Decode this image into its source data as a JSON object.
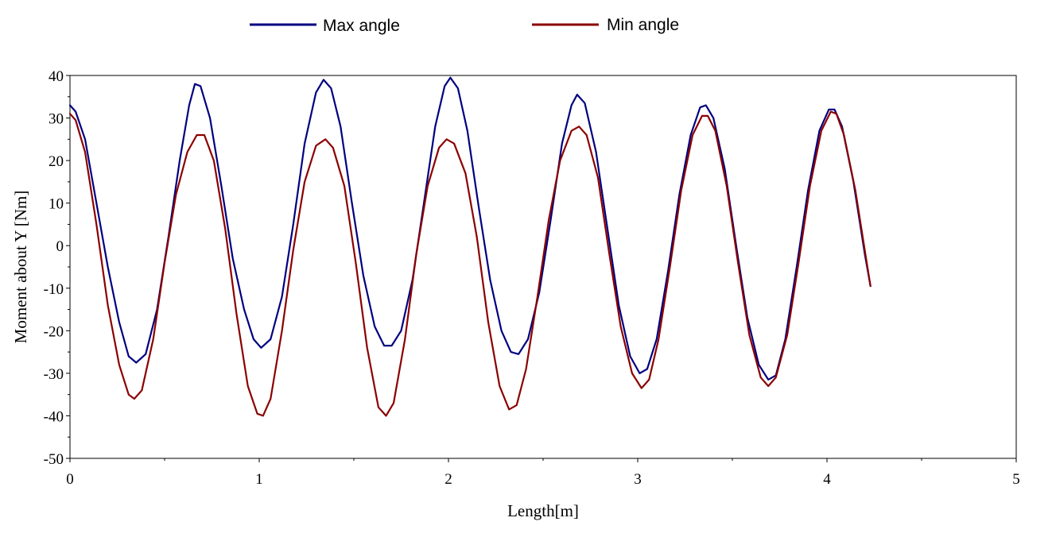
{
  "chart_data": {
    "type": "line",
    "title": "",
    "xlabel": "Length[m]",
    "ylabel": "Moment about Y [Nm]",
    "xlim": [
      0,
      5
    ],
    "ylim": [
      -50,
      40
    ],
    "xticks": [
      0,
      1,
      2,
      3,
      4,
      5
    ],
    "yticks": [
      40,
      30,
      20,
      10,
      0,
      -10,
      -20,
      -30,
      -40,
      -50
    ],
    "grid": false,
    "legend_position": "top",
    "series": [
      {
        "name": "Max angle",
        "color": "#000080",
        "points": [
          [
            0.0,
            33.0
          ],
          [
            0.03,
            31.5
          ],
          [
            0.08,
            25.0
          ],
          [
            0.14,
            10.0
          ],
          [
            0.2,
            -5.0
          ],
          [
            0.26,
            -18.0
          ],
          [
            0.31,
            -26.0
          ],
          [
            0.35,
            -27.5
          ],
          [
            0.4,
            -25.5
          ],
          [
            0.46,
            -15.0
          ],
          [
            0.52,
            2.0
          ],
          [
            0.58,
            20.0
          ],
          [
            0.63,
            33.0
          ],
          [
            0.66,
            38.0
          ],
          [
            0.69,
            37.5
          ],
          [
            0.74,
            30.0
          ],
          [
            0.8,
            14.0
          ],
          [
            0.86,
            -3.0
          ],
          [
            0.92,
            -15.0
          ],
          [
            0.97,
            -22.0
          ],
          [
            1.01,
            -24.0
          ],
          [
            1.06,
            -22.0
          ],
          [
            1.12,
            -12.0
          ],
          [
            1.18,
            5.0
          ],
          [
            1.24,
            24.0
          ],
          [
            1.3,
            36.0
          ],
          [
            1.34,
            39.0
          ],
          [
            1.38,
            37.0
          ],
          [
            1.43,
            28.0
          ],
          [
            1.49,
            10.0
          ],
          [
            1.55,
            -7.0
          ],
          [
            1.61,
            -19.0
          ],
          [
            1.66,
            -23.5
          ],
          [
            1.7,
            -23.5
          ],
          [
            1.75,
            -20.0
          ],
          [
            1.81,
            -8.0
          ],
          [
            1.87,
            10.0
          ],
          [
            1.93,
            28.0
          ],
          [
            1.98,
            37.5
          ],
          [
            2.01,
            39.5
          ],
          [
            2.05,
            37.0
          ],
          [
            2.1,
            27.0
          ],
          [
            2.16,
            9.0
          ],
          [
            2.22,
            -8.0
          ],
          [
            2.28,
            -20.0
          ],
          [
            2.33,
            -25.0
          ],
          [
            2.37,
            -25.5
          ],
          [
            2.42,
            -22.0
          ],
          [
            2.48,
            -11.0
          ],
          [
            2.54,
            6.0
          ],
          [
            2.6,
            24.0
          ],
          [
            2.65,
            33.0
          ],
          [
            2.68,
            35.5
          ],
          [
            2.72,
            33.5
          ],
          [
            2.78,
            22.0
          ],
          [
            2.84,
            4.0
          ],
          [
            2.9,
            -14.0
          ],
          [
            2.96,
            -26.0
          ],
          [
            3.01,
            -30.0
          ],
          [
            3.05,
            -29.0
          ],
          [
            3.1,
            -22.0
          ],
          [
            3.16,
            -6.0
          ],
          [
            3.22,
            12.0
          ],
          [
            3.28,
            26.0
          ],
          [
            3.33,
            32.5
          ],
          [
            3.36,
            33.0
          ],
          [
            3.4,
            30.0
          ],
          [
            3.46,
            18.0
          ],
          [
            3.52,
            0.0
          ],
          [
            3.58,
            -17.0
          ],
          [
            3.64,
            -28.0
          ],
          [
            3.69,
            -31.5
          ],
          [
            3.73,
            -30.5
          ],
          [
            3.78,
            -22.0
          ],
          [
            3.84,
            -5.0
          ],
          [
            3.9,
            13.0
          ],
          [
            3.96,
            27.0
          ],
          [
            4.01,
            32.0
          ],
          [
            4.04,
            32.0
          ],
          [
            4.08,
            28.0
          ],
          [
            4.14,
            15.0
          ],
          [
            4.2,
            -2.0
          ],
          [
            4.23,
            -9.5
          ]
        ]
      },
      {
        "name": "Min angle",
        "color": "#8B0000",
        "points": [
          [
            0.0,
            31.0
          ],
          [
            0.03,
            29.5
          ],
          [
            0.08,
            22.0
          ],
          [
            0.14,
            5.0
          ],
          [
            0.2,
            -14.0
          ],
          [
            0.26,
            -28.0
          ],
          [
            0.31,
            -35.0
          ],
          [
            0.34,
            -36.0
          ],
          [
            0.38,
            -34.0
          ],
          [
            0.44,
            -22.0
          ],
          [
            0.5,
            -4.0
          ],
          [
            0.56,
            12.0
          ],
          [
            0.62,
            22.0
          ],
          [
            0.67,
            26.0
          ],
          [
            0.71,
            26.0
          ],
          [
            0.76,
            20.0
          ],
          [
            0.82,
            4.0
          ],
          [
            0.88,
            -16.0
          ],
          [
            0.94,
            -33.0
          ],
          [
            0.99,
            -39.5
          ],
          [
            1.02,
            -40.0
          ],
          [
            1.06,
            -36.0
          ],
          [
            1.12,
            -20.0
          ],
          [
            1.18,
            -1.0
          ],
          [
            1.24,
            15.0
          ],
          [
            1.3,
            23.5
          ],
          [
            1.35,
            25.0
          ],
          [
            1.39,
            23.0
          ],
          [
            1.45,
            14.0
          ],
          [
            1.51,
            -4.0
          ],
          [
            1.57,
            -24.0
          ],
          [
            1.63,
            -38.0
          ],
          [
            1.67,
            -40.0
          ],
          [
            1.71,
            -37.0
          ],
          [
            1.77,
            -22.0
          ],
          [
            1.83,
            -2.0
          ],
          [
            1.89,
            14.0
          ],
          [
            1.95,
            23.0
          ],
          [
            1.99,
            25.0
          ],
          [
            2.03,
            24.0
          ],
          [
            2.09,
            17.0
          ],
          [
            2.15,
            2.0
          ],
          [
            2.21,
            -18.0
          ],
          [
            2.27,
            -33.0
          ],
          [
            2.32,
            -38.5
          ],
          [
            2.36,
            -37.5
          ],
          [
            2.41,
            -29.0
          ],
          [
            2.47,
            -12.0
          ],
          [
            2.53,
            6.0
          ],
          [
            2.59,
            20.0
          ],
          [
            2.65,
            27.0
          ],
          [
            2.69,
            28.0
          ],
          [
            2.73,
            26.0
          ],
          [
            2.79,
            16.0
          ],
          [
            2.85,
            -2.0
          ],
          [
            2.91,
            -19.0
          ],
          [
            2.97,
            -30.0
          ],
          [
            3.02,
            -33.5
          ],
          [
            3.06,
            -31.5
          ],
          [
            3.11,
            -22.0
          ],
          [
            3.17,
            -5.0
          ],
          [
            3.23,
            13.0
          ],
          [
            3.29,
            26.0
          ],
          [
            3.34,
            30.5
          ],
          [
            3.37,
            30.5
          ],
          [
            3.41,
            27.0
          ],
          [
            3.47,
            14.0
          ],
          [
            3.53,
            -4.0
          ],
          [
            3.59,
            -21.0
          ],
          [
            3.65,
            -31.0
          ],
          [
            3.69,
            -33.0
          ],
          [
            3.73,
            -31.0
          ],
          [
            3.79,
            -21.0
          ],
          [
            3.85,
            -4.0
          ],
          [
            3.91,
            14.0
          ],
          [
            3.97,
            27.0
          ],
          [
            4.02,
            31.5
          ],
          [
            4.05,
            31.0
          ],
          [
            4.09,
            26.0
          ],
          [
            4.15,
            13.0
          ],
          [
            4.21,
            -4.0
          ],
          [
            4.23,
            -9.5
          ]
        ]
      }
    ]
  }
}
